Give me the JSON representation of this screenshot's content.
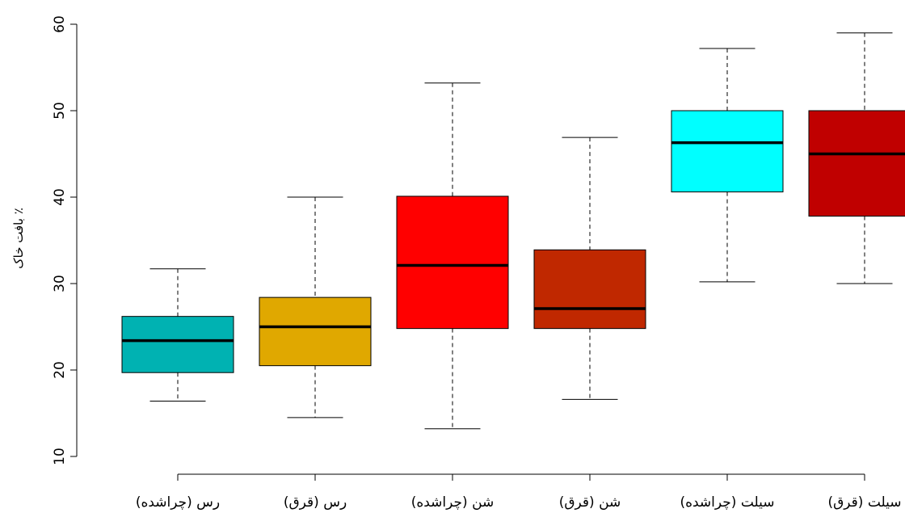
{
  "chart_data": {
    "type": "box",
    "xlabel": "",
    "ylabel": "بافت خاک ٪",
    "ylim": [
      10,
      60
    ],
    "yticks": [
      10,
      20,
      30,
      40,
      50,
      60
    ],
    "yticks_rotated": true,
    "grid": false,
    "legend": "none",
    "categories": [
      "رس (چراشده)",
      "رس (قرق)",
      "شن (چراشده)",
      "شن (قرق)",
      "سیلت (چراشده)",
      "سیلت (قرق)"
    ],
    "boxes": [
      {
        "category": "رس (چراشده)",
        "whisker_low": 16.4,
        "q1": 19.7,
        "median": 23.4,
        "q3": 26.2,
        "whisker_high": 31.7,
        "color": "#00b2b2"
      },
      {
        "category": "رس (قرق)",
        "whisker_low": 14.5,
        "q1": 20.5,
        "median": 25.0,
        "q3": 28.4,
        "whisker_high": 40.0,
        "color": "#e0a800"
      },
      {
        "category": "شن (چراشده)",
        "whisker_low": 13.2,
        "q1": 24.8,
        "median": 32.1,
        "q3": 40.1,
        "whisker_high": 53.2,
        "color": "#ff0000"
      },
      {
        "category": "شن (قرق)",
        "whisker_low": 16.6,
        "q1": 24.8,
        "median": 27.1,
        "q3": 33.9,
        "whisker_high": 46.9,
        "color": "#c02800"
      },
      {
        "category": "سیلت (چراشده)",
        "whisker_low": 30.2,
        "q1": 40.6,
        "median": 46.3,
        "q3": 50.0,
        "whisker_high": 57.2,
        "color": "#00ffff"
      },
      {
        "category": "سیلت (قرق)",
        "whisker_low": 30.0,
        "q1": 37.8,
        "median": 45.0,
        "q3": 50.0,
        "whisker_high": 59.0,
        "color": "#c00000"
      }
    ]
  }
}
